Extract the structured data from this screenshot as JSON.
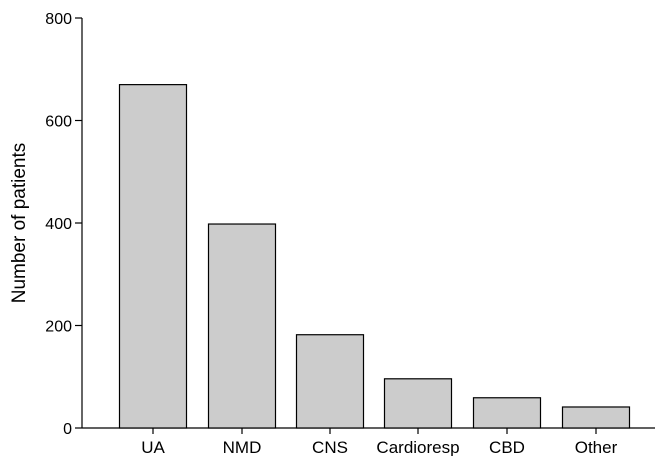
{
  "chart_data": {
    "type": "bar",
    "title": "",
    "xlabel": "",
    "ylabel": "Number of patients",
    "categories": [
      "UA",
      "NMD",
      "CNS",
      "Cardioresp",
      "CBD",
      "Other"
    ],
    "values": [
      670,
      398,
      182,
      96,
      59,
      41
    ],
    "ylim": [
      0,
      800
    ],
    "yticks": [
      0,
      200,
      400,
      600,
      800
    ],
    "grid": false,
    "bar_color": "#cccccc",
    "bar_edge_color": "#000000"
  }
}
